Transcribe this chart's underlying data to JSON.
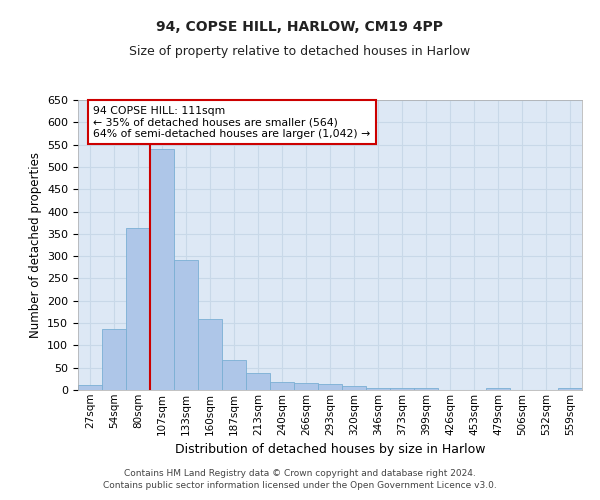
{
  "title1": "94, COPSE HILL, HARLOW, CM19 4PP",
  "title2": "Size of property relative to detached houses in Harlow",
  "xlabel": "Distribution of detached houses by size in Harlow",
  "ylabel": "Number of detached properties",
  "categories": [
    "27sqm",
    "54sqm",
    "80sqm",
    "107sqm",
    "133sqm",
    "160sqm",
    "187sqm",
    "213sqm",
    "240sqm",
    "266sqm",
    "293sqm",
    "320sqm",
    "346sqm",
    "373sqm",
    "399sqm",
    "426sqm",
    "453sqm",
    "479sqm",
    "506sqm",
    "532sqm",
    "559sqm"
  ],
  "values": [
    11,
    137,
    362,
    540,
    291,
    160,
    68,
    39,
    17,
    15,
    13,
    9,
    4,
    4,
    4,
    0,
    0,
    5,
    0,
    0,
    5
  ],
  "bar_color": "#aec6e8",
  "bar_edge_color": "#7aafd4",
  "redline_index": 3,
  "annotation_text": "94 COPSE HILL: 111sqm\n← 35% of detached houses are smaller (564)\n64% of semi-detached houses are larger (1,042) →",
  "annotation_box_color": "#ffffff",
  "annotation_box_edge_color": "#cc0000",
  "footer": "Contains HM Land Registry data © Crown copyright and database right 2024.\nContains public sector information licensed under the Open Government Licence v3.0.",
  "ylim": [
    0,
    650
  ],
  "yticks": [
    0,
    50,
    100,
    150,
    200,
    250,
    300,
    350,
    400,
    450,
    500,
    550,
    600,
    650
  ],
  "grid_color": "#c8d8e8",
  "background_color": "#dde8f5",
  "figsize": [
    6.0,
    5.0
  ],
  "dpi": 100
}
